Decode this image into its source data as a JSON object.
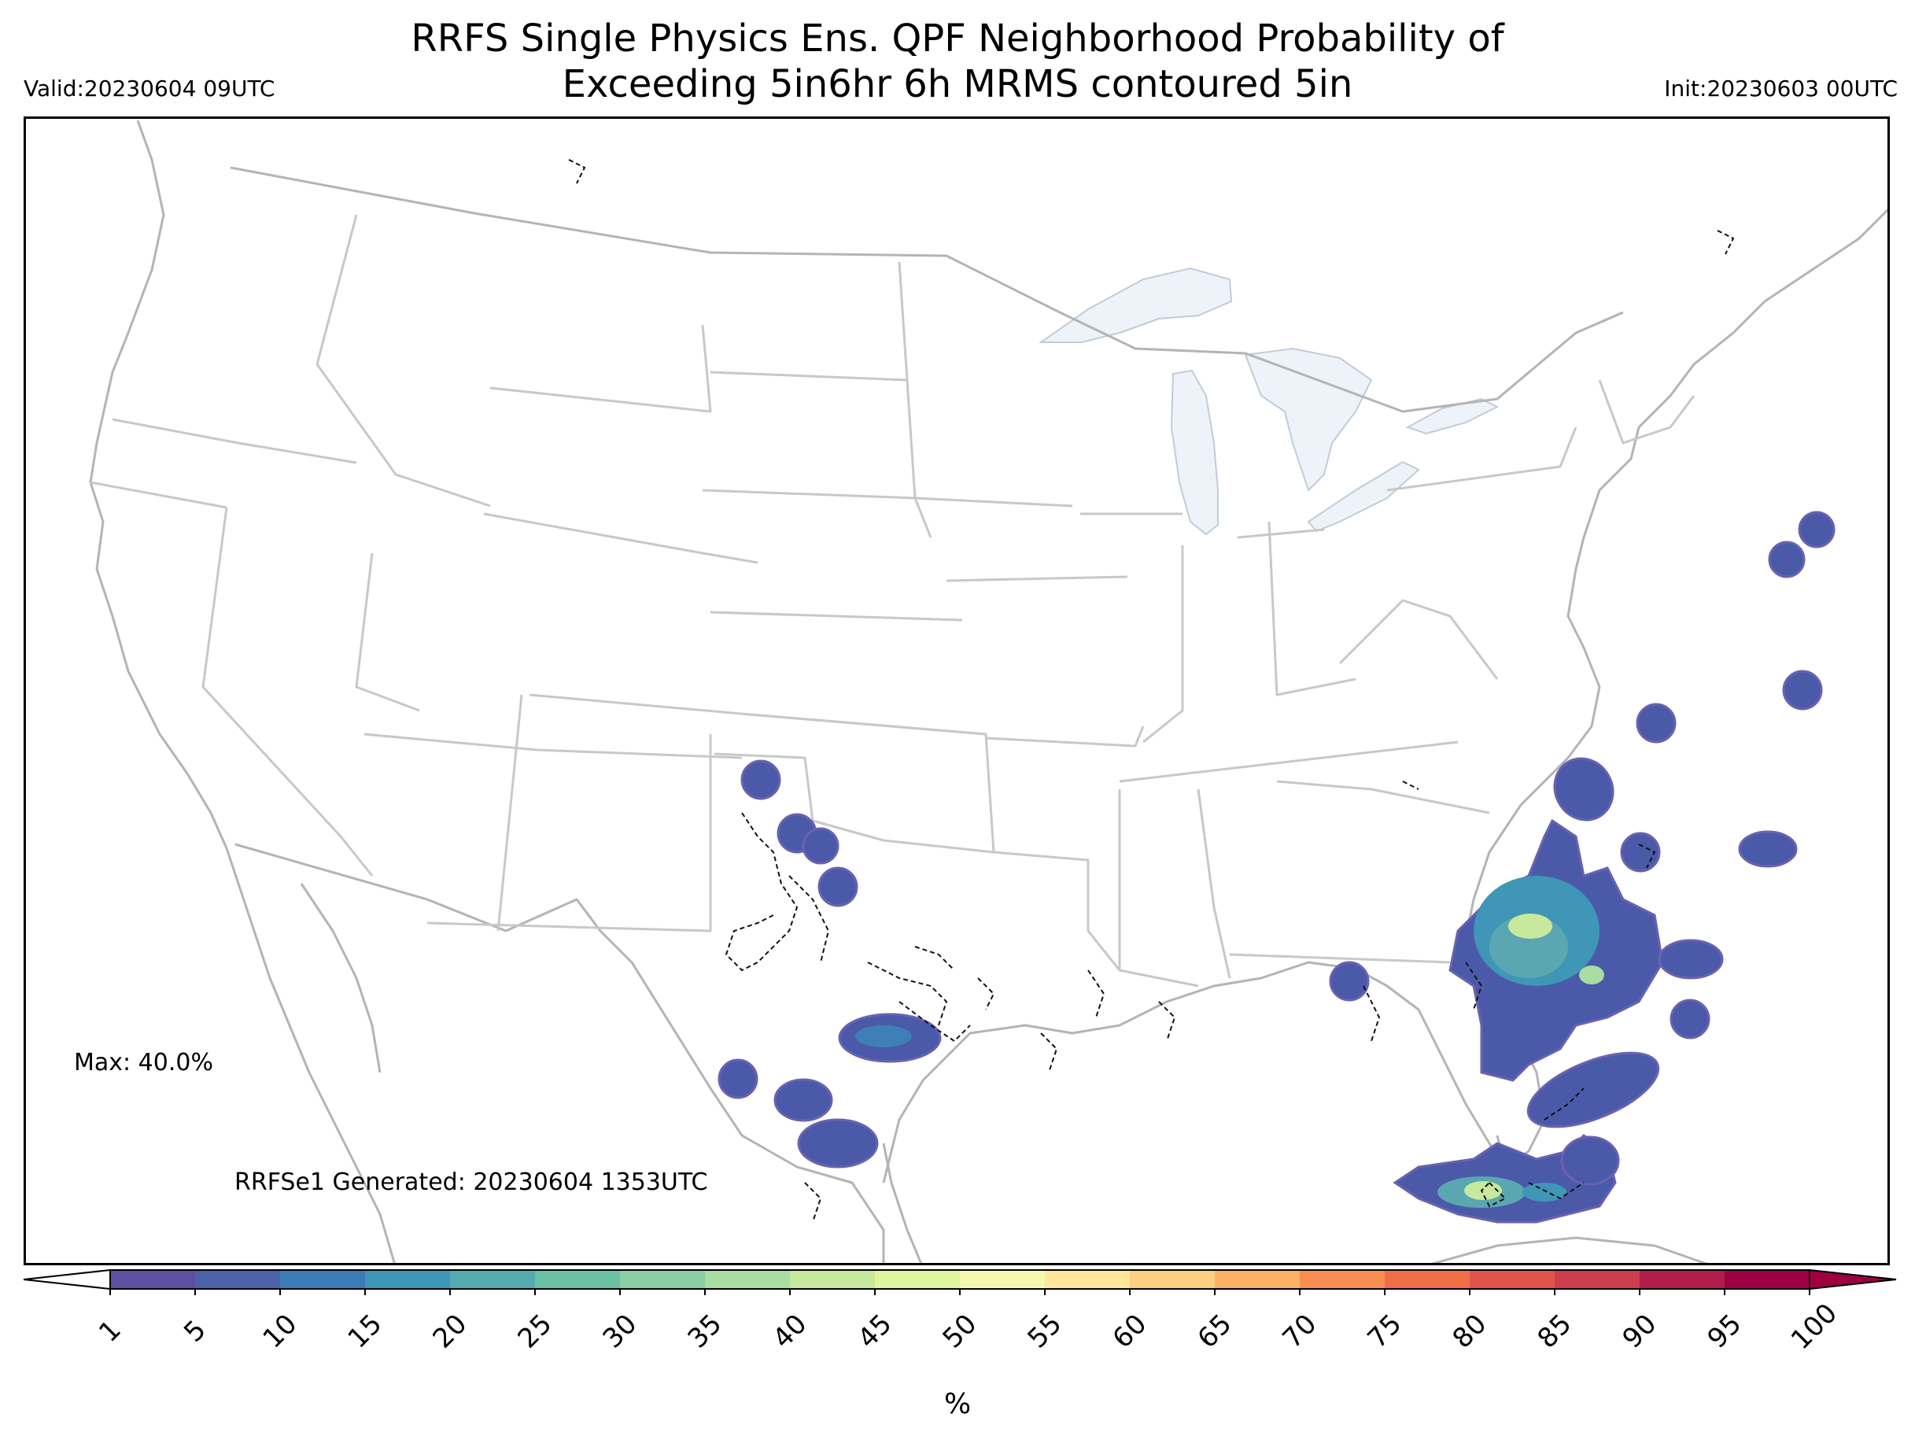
{
  "title_line1": "RRFS Single Physics Ens. QPF Neighborhood Probability of",
  "title_line2": "Exceeding 5in6hr 6h MRMS contoured 5in",
  "valid": "Valid:20230604 09UTC",
  "init": "Init:20230603 00UTC",
  "max_text": "Max: 40.0%",
  "generated_text": "RRFSe1 Generated: 20230604 1353UTC",
  "colorbar": {
    "unit": "%",
    "ticks": [
      "1",
      "5",
      "10",
      "15",
      "20",
      "25",
      "30",
      "35",
      "40",
      "45",
      "50",
      "55",
      "60",
      "65",
      "70",
      "75",
      "80",
      "85",
      "90",
      "95",
      "100"
    ],
    "colors": [
      "#5e4fa2",
      "#4b61aa",
      "#3a7bb8",
      "#3f96b7",
      "#55abad",
      "#6cc0a4",
      "#89d0a4",
      "#a9dda2",
      "#c6e99c",
      "#e1f39c",
      "#f5f8af",
      "#fee79a",
      "#fdcf80",
      "#fcb164",
      "#f98e52",
      "#f06e45",
      "#e1544a",
      "#cc3d4e",
      "#b11d4a",
      "#9e0142"
    ]
  },
  "colors": {
    "state_lines": "#c8c8c8",
    "coast_lines": "#b4b4b4",
    "lakes": "#eef2f9",
    "prob_low": "#4a5aa8",
    "prob_mid": "#5aa7b1",
    "prob_high": "#c8e99d",
    "observed_contour": "#111111"
  }
}
